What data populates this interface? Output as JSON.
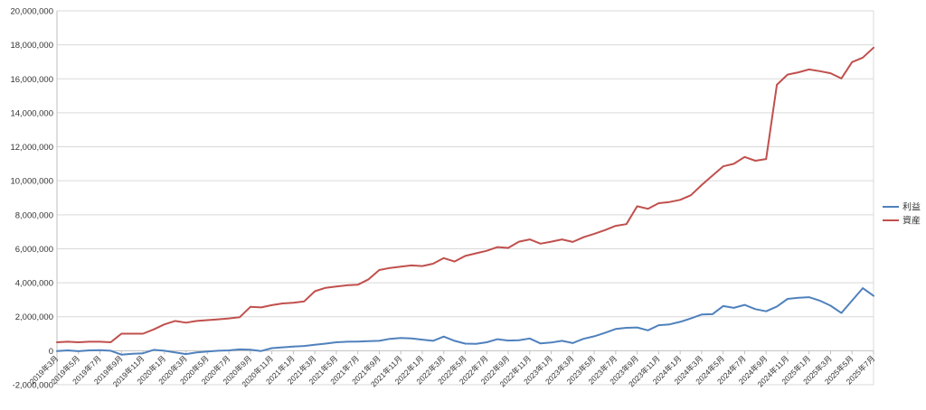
{
  "chart_data": {
    "type": "line",
    "title": "",
    "xlabel": "",
    "ylabel": "",
    "ylim": [
      -2000000,
      20000000
    ],
    "yticks": [
      -2000000,
      0,
      2000000,
      4000000,
      6000000,
      8000000,
      10000000,
      12000000,
      14000000,
      16000000,
      18000000,
      20000000
    ],
    "ytick_labels": [
      "-2,000,000",
      "0",
      "2,000,000",
      "4,000,000",
      "6,000,000",
      "8,000,000",
      "10,000,000",
      "12,000,000",
      "14,000,000",
      "16,000,000",
      "18,000,000",
      "20,000,000"
    ],
    "grid": true,
    "legend_position": "right",
    "categories": [
      "2019年3月",
      "2019年4月",
      "2019年5月",
      "2019年6月",
      "2019年7月",
      "2019年8月",
      "2019年9月",
      "2019年10月",
      "2019年11月",
      "2019年12月",
      "2020年1月",
      "2020年2月",
      "2020年3月",
      "2020年4月",
      "2020年5月",
      "2020年6月",
      "2020年7月",
      "2020年8月",
      "2020年9月",
      "2020年10月",
      "2020年11月",
      "2020年12月",
      "2021年1月",
      "2021年2月",
      "2021年3月",
      "2021年4月",
      "2021年5月",
      "2021年6月",
      "2021年7月",
      "2021年8月",
      "2021年9月",
      "2021年10月",
      "2021年11月",
      "2021年12月",
      "2022年1月",
      "2022年2月",
      "2022年3月",
      "2022年4月",
      "2022年5月",
      "2022年6月",
      "2022年7月",
      "2022年8月",
      "2022年9月",
      "2022年10月",
      "2022年11月",
      "2022年12月",
      "2023年1月",
      "2023年2月",
      "2023年3月",
      "2023年4月",
      "2023年5月",
      "2023年6月",
      "2023年7月",
      "2023年8月",
      "2023年9月",
      "2023年10月",
      "2023年11月",
      "2023年12月",
      "2024年1月",
      "2024年2月",
      "2024年3月",
      "2024年4月",
      "2024年5月",
      "2024年6月",
      "2024年7月",
      "2024年8月",
      "2024年9月",
      "2024年10月",
      "2024年11月",
      "2024年12月",
      "2025年1月",
      "2025年2月",
      "2025年3月",
      "2025年4月",
      "2025年5月",
      "2025年6月",
      "2025年7月"
    ],
    "tick_labels": [
      "2019年3月",
      "2019年5月",
      "2019年7月",
      "2019年9月",
      "2019年11月",
      "2020年1月",
      "2020年3月",
      "2020年5月",
      "2020年7月",
      "2020年9月",
      "2020年11月",
      "2021年1月",
      "2021年3月",
      "2021年5月",
      "2021年7月",
      "2021年9月",
      "2021年11月",
      "2022年1月",
      "2022年3月",
      "2022年5月",
      "2022年7月",
      "2022年9月",
      "2022年11月",
      "2023年1月",
      "2023年3月",
      "2023年5月",
      "2023年7月",
      "2023年9月",
      "2023年11月",
      "2024年1月",
      "2024年3月",
      "2024年5月",
      "2024年7月",
      "2024年9月",
      "2024年11月",
      "2025年1月",
      "2025年3月",
      "2025年5月",
      "2025年7月"
    ],
    "series": [
      {
        "name": "利益",
        "color": "#4f81bd",
        "values": [
          -20000,
          20000,
          -30000,
          20000,
          30000,
          0,
          -230000,
          -180000,
          -150000,
          50000,
          0,
          -100000,
          -200000,
          -100000,
          -50000,
          0,
          20000,
          80000,
          60000,
          -20000,
          150000,
          200000,
          250000,
          280000,
          350000,
          420000,
          500000,
          530000,
          540000,
          560000,
          580000,
          700000,
          750000,
          720000,
          650000,
          580000,
          830000,
          580000,
          420000,
          400000,
          500000,
          680000,
          600000,
          620000,
          720000,
          430000,
          480000,
          580000,
          450000,
          700000,
          850000,
          1050000,
          1280000,
          1350000,
          1370000,
          1200000,
          1500000,
          1550000,
          1700000,
          1900000,
          2130000,
          2150000,
          2630000,
          2520000,
          2700000,
          2450000,
          2320000,
          2600000,
          3050000,
          3120000,
          3150000,
          2950000,
          2650000,
          2220000,
          2950000,
          3680000,
          3230000
        ]
      },
      {
        "name": "資産",
        "color": "#c0504d",
        "values": [
          500000,
          530000,
          500000,
          530000,
          530000,
          500000,
          1000000,
          1000000,
          1000000,
          1250000,
          1550000,
          1750000,
          1650000,
          1750000,
          1800000,
          1850000,
          1900000,
          1970000,
          2580000,
          2550000,
          2680000,
          2780000,
          2820000,
          2900000,
          3500000,
          3700000,
          3780000,
          3850000,
          3880000,
          4200000,
          4750000,
          4870000,
          4950000,
          5020000,
          4980000,
          5120000,
          5450000,
          5250000,
          5580000,
          5730000,
          5880000,
          6100000,
          6050000,
          6420000,
          6550000,
          6300000,
          6420000,
          6550000,
          6400000,
          6680000,
          6880000,
          7100000,
          7350000,
          7450000,
          8500000,
          8350000,
          8680000,
          8750000,
          8880000,
          9150000,
          9750000,
          10300000,
          10850000,
          11000000,
          11400000,
          11180000,
          11280000,
          15650000,
          16250000,
          16380000,
          16550000,
          16450000,
          16330000,
          16020000,
          16980000,
          17250000,
          17830000
        ]
      }
    ]
  }
}
